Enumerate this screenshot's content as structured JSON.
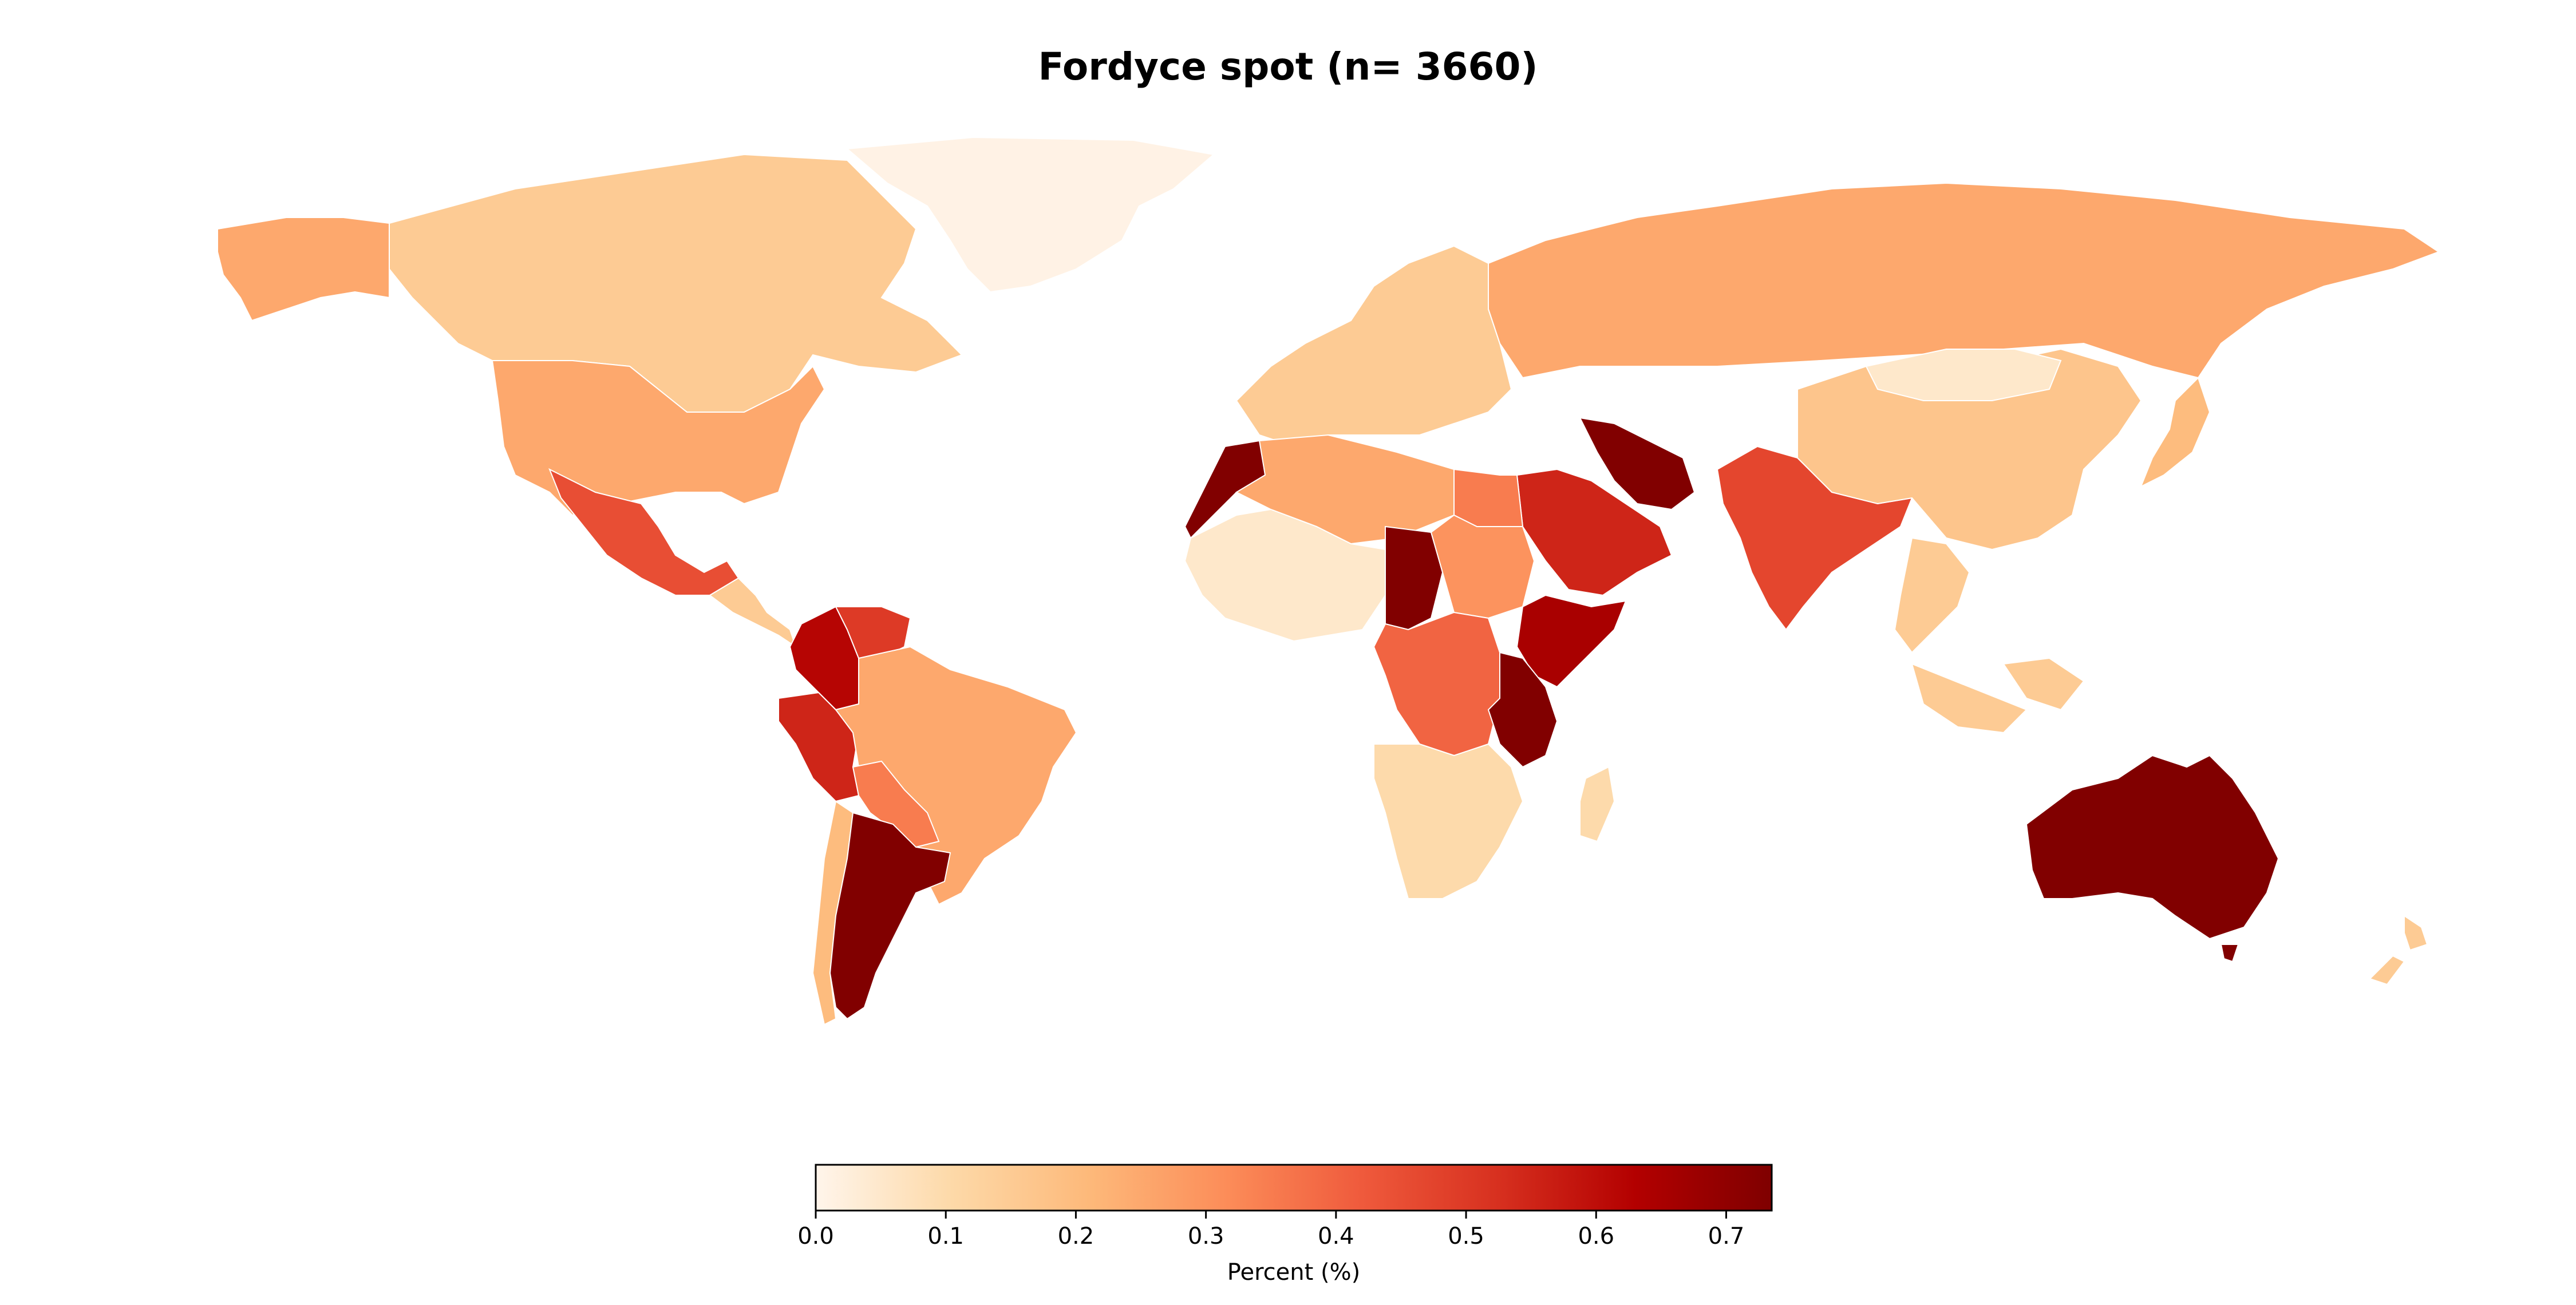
{
  "title": "Fordyce spot (n= 3660)",
  "colorbar": {
    "label": "Percent (%)",
    "min": 0.0,
    "max": 0.735,
    "ticks": [
      "0.0",
      "0.1",
      "0.2",
      "0.3",
      "0.4",
      "0.5",
      "0.6",
      "0.7"
    ],
    "tick_values": [
      0.0,
      0.1,
      0.2,
      0.3,
      0.4,
      0.5,
      0.6,
      0.7
    ],
    "colormap": [
      "#fff5eb",
      "#fdd9a8",
      "#fdb97a",
      "#fc8d59",
      "#ef5a3c",
      "#d7301f",
      "#b30000",
      "#7f0000"
    ]
  },
  "regions": [
    {
      "id": "greenland",
      "value": 0.01
    },
    {
      "id": "canada",
      "value": 0.15
    },
    {
      "id": "alaska",
      "value": 0.25
    },
    {
      "id": "usa",
      "value": 0.25
    },
    {
      "id": "mexico",
      "value": 0.45
    },
    {
      "id": "central-america",
      "value": 0.15
    },
    {
      "id": "colombia",
      "value": 0.62
    },
    {
      "id": "venezuela",
      "value": 0.5
    },
    {
      "id": "peru",
      "value": 0.55
    },
    {
      "id": "brazil",
      "value": 0.25
    },
    {
      "id": "bolivia",
      "value": 0.35
    },
    {
      "id": "argentina",
      "value": 0.73
    },
    {
      "id": "chile",
      "value": 0.2
    },
    {
      "id": "morocco",
      "value": 0.73
    },
    {
      "id": "west-africa",
      "value": 0.05
    },
    {
      "id": "algeria-libya",
      "value": 0.25
    },
    {
      "id": "egypt",
      "value": 0.35
    },
    {
      "id": "chad",
      "value": 0.73
    },
    {
      "id": "sudan",
      "value": 0.3
    },
    {
      "id": "ethiopia-somalia",
      "value": 0.65
    },
    {
      "id": "kenya-tanzania",
      "value": 0.73
    },
    {
      "id": "drc",
      "value": 0.4
    },
    {
      "id": "southern-africa",
      "value": 0.1
    },
    {
      "id": "europe",
      "value": 0.15
    },
    {
      "id": "russia",
      "value": 0.25
    },
    {
      "id": "iran",
      "value": 0.73
    },
    {
      "id": "saudi-arabia",
      "value": 0.55
    },
    {
      "id": "india",
      "value": 0.47
    },
    {
      "id": "china",
      "value": 0.17
    },
    {
      "id": "mongolia",
      "value": 0.05
    },
    {
      "id": "southeast-asia",
      "value": 0.15
    },
    {
      "id": "australia",
      "value": 0.73
    },
    {
      "id": "new-zealand",
      "value": 0.15
    },
    {
      "id": "japan",
      "value": 0.2
    }
  ]
}
